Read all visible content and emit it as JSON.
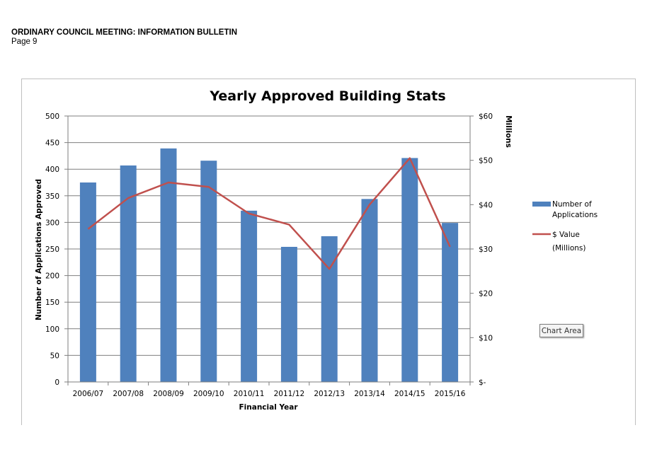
{
  "header": {
    "title": "ORDINARY COUNCIL MEETING: INFORMATION BULLETIN",
    "page": "Page 9"
  },
  "tooltip": {
    "label": "Chart Area"
  },
  "chart_data": {
    "type": "bar",
    "title": "Yearly Approved Building Stats",
    "xlabel": "Financial Year",
    "ylabel": "Number of Applications Approved",
    "y2label": "Millions",
    "categories": [
      "2006/07",
      "2007/08",
      "2008/09",
      "2009/10",
      "2010/11",
      "2011/12",
      "2012/13",
      "2013/14",
      "2014/15",
      "2015/16"
    ],
    "ylim": [
      0,
      500
    ],
    "yticks": [
      0,
      50,
      100,
      150,
      200,
      250,
      300,
      350,
      400,
      450,
      500
    ],
    "y2lim": [
      0,
      60
    ],
    "y2ticks": [
      "$-",
      "$10",
      "$20",
      "$30",
      "$40",
      "$50",
      "$60"
    ],
    "grid": true,
    "legend_position": "right",
    "series": [
      {
        "name": "Number of Applications",
        "type": "bar",
        "axis": "left",
        "color": "#4f81bd",
        "values": [
          375,
          407,
          439,
          416,
          322,
          254,
          274,
          344,
          421,
          299
        ]
      },
      {
        "name": "$ Value (Millions)",
        "type": "line",
        "axis": "right",
        "color": "#c0504d",
        "values": [
          34.5,
          41.5,
          45.0,
          44.0,
          38.0,
          35.5,
          25.5,
          40.0,
          50.5,
          30.5
        ]
      }
    ],
    "legend": [
      {
        "line1": "Number of",
        "line2": "Applications"
      },
      {
        "line1": "$ Value",
        "line2": "(Millions)"
      }
    ]
  }
}
